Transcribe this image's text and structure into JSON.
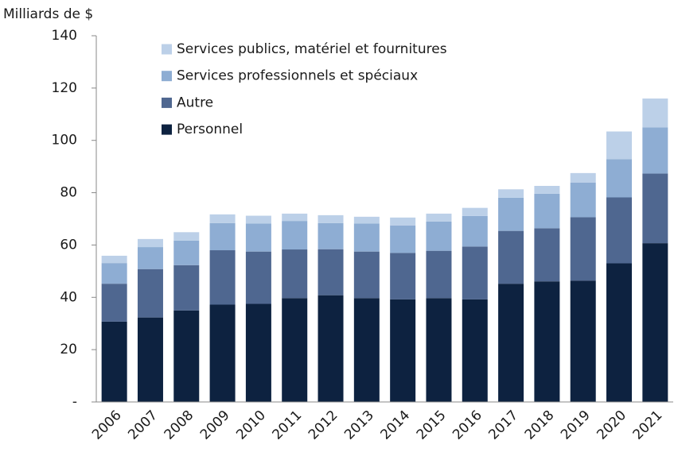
{
  "chart_data": {
    "type": "stacked_bar",
    "y_axis_label": "Milliards de $",
    "categories": [
      "2006",
      "2007",
      "2008",
      "2009",
      "2010",
      "2011",
      "2012",
      "2013",
      "2014",
      "2015",
      "2016",
      "2017",
      "2018",
      "2019",
      "2020",
      "2021"
    ],
    "series": [
      {
        "name": "Personnel",
        "color": "#0d2240",
        "values": [
          30.7,
          32.3,
          35.0,
          37.2,
          37.5,
          39.7,
          40.8,
          39.7,
          39.2,
          39.7,
          39.2,
          45.2,
          46.1,
          46.4,
          53.0,
          60.7
        ]
      },
      {
        "name": "Autre",
        "color": "#4f6790",
        "values": [
          14.5,
          18.5,
          17.3,
          20.8,
          20.0,
          18.6,
          17.6,
          17.8,
          17.8,
          18.1,
          20.2,
          20.2,
          20.3,
          24.2,
          25.2,
          26.6
        ]
      },
      {
        "name": "Services professionnels et spéciaux",
        "color": "#8eadd3",
        "values": [
          7.9,
          8.4,
          9.4,
          10.4,
          10.7,
          10.9,
          10.0,
          10.7,
          10.5,
          11.2,
          11.7,
          12.7,
          13.2,
          13.3,
          14.6,
          17.7
        ]
      },
      {
        "name": "Services publics, matériel et fournitures",
        "color": "#bcd0e8",
        "values": [
          2.8,
          3.1,
          3.2,
          3.3,
          3.0,
          2.8,
          3.0,
          2.6,
          3.0,
          3.0,
          3.1,
          3.2,
          3.0,
          3.6,
          10.6,
          11.0
        ]
      }
    ],
    "ylim": [
      0,
      140
    ],
    "yticks": [
      {
        "value": 0,
        "label": "-"
      },
      20,
      40,
      60,
      80,
      100,
      120,
      140
    ],
    "legend": "upper left"
  }
}
